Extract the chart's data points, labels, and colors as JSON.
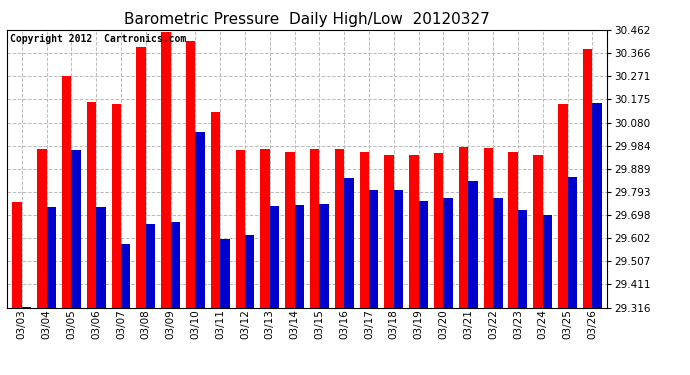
{
  "title": "Barometric Pressure  Daily High/Low  20120327",
  "copyright": "Copyright 2012  Cartronics.com",
  "dates": [
    "03/03",
    "03/04",
    "03/05",
    "03/06",
    "03/07",
    "03/08",
    "03/09",
    "03/10",
    "03/11",
    "03/12",
    "03/13",
    "03/14",
    "03/15",
    "03/16",
    "03/17",
    "03/18",
    "03/19",
    "03/20",
    "03/21",
    "03/22",
    "03/23",
    "03/24",
    "03/25",
    "03/26"
  ],
  "highs": [
    29.75,
    29.97,
    30.27,
    30.165,
    30.155,
    30.39,
    30.455,
    30.415,
    30.125,
    29.965,
    29.97,
    29.96,
    29.97,
    29.97,
    29.96,
    29.945,
    29.945,
    29.955,
    29.98,
    29.975,
    29.96,
    29.945,
    30.155,
    30.385
  ],
  "lows": [
    29.32,
    29.73,
    29.965,
    29.73,
    29.58,
    29.66,
    29.67,
    30.04,
    29.6,
    29.615,
    29.735,
    29.74,
    29.745,
    29.85,
    29.8,
    29.8,
    29.755,
    29.77,
    29.84,
    29.77,
    29.72,
    29.7,
    29.855,
    30.16
  ],
  "yticks": [
    29.316,
    29.411,
    29.507,
    29.602,
    29.698,
    29.793,
    29.889,
    29.984,
    30.08,
    30.175,
    30.271,
    30.366,
    30.462
  ],
  "ymin": 29.316,
  "ymax": 30.462,
  "bar_width": 0.38,
  "high_color": "#ff0000",
  "low_color": "#0000cc",
  "bg_color": "#ffffff",
  "grid_color": "#bbbbbb",
  "title_fontsize": 11,
  "tick_fontsize": 7.5,
  "copyright_fontsize": 7
}
